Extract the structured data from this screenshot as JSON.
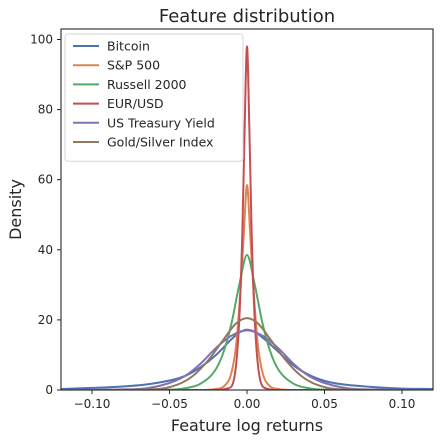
{
  "chart_data": {
    "type": "line",
    "title": "Feature distribution",
    "xlabel": "Feature log returns",
    "ylabel": "Density",
    "xlim": [
      -0.12,
      0.12
    ],
    "ylim": [
      0,
      103
    ],
    "x_ticks": [
      -0.1,
      -0.05,
      0.0,
      0.05,
      0.1
    ],
    "x_tick_labels": [
      "−0.10",
      "−0.05",
      "0.00",
      "0.05",
      "0.10"
    ],
    "y_ticks": [
      0,
      20,
      40,
      60,
      80,
      100
    ],
    "y_tick_labels": [
      "0",
      "20",
      "40",
      "60",
      "80",
      "100"
    ],
    "grid": false,
    "legend_position": "top-left",
    "series": [
      {
        "name": "Bitcoin",
        "color": "#4c72b0",
        "points": [
          [
            -0.12,
            0.3
          ],
          [
            -0.1,
            0.6
          ],
          [
            -0.08,
            1.0
          ],
          [
            -0.06,
            1.9
          ],
          [
            -0.04,
            4.0
          ],
          [
            -0.03,
            6.5
          ],
          [
            -0.02,
            10.0
          ],
          [
            -0.01,
            14.5
          ],
          [
            -0.005,
            16.4
          ],
          [
            0.0,
            17.2
          ],
          [
            0.005,
            16.6
          ],
          [
            0.01,
            15.0
          ],
          [
            0.02,
            11.0
          ],
          [
            0.03,
            7.0
          ],
          [
            0.04,
            4.3
          ],
          [
            0.05,
            2.6
          ],
          [
            0.06,
            1.7
          ],
          [
            0.08,
            0.9
          ],
          [
            0.1,
            0.4
          ],
          [
            0.12,
            0.3
          ]
        ]
      },
      {
        "name": "S&P 500",
        "color": "#dd8452",
        "points": [
          [
            -0.12,
            0.0
          ],
          [
            -0.03,
            0.0
          ],
          [
            -0.02,
            0.3
          ],
          [
            -0.015,
            1.0
          ],
          [
            -0.01,
            5.0
          ],
          [
            -0.007,
            13.0
          ],
          [
            -0.004,
            30.0
          ],
          [
            -0.002,
            45.0
          ],
          [
            0.0,
            58.5
          ],
          [
            0.002,
            45.0
          ],
          [
            0.004,
            30.0
          ],
          [
            0.007,
            13.0
          ],
          [
            0.01,
            5.0
          ],
          [
            0.015,
            1.0
          ],
          [
            0.02,
            0.3
          ],
          [
            0.03,
            0.0
          ],
          [
            0.12,
            0.0
          ]
        ]
      },
      {
        "name": "Russell 2000",
        "color": "#55a868",
        "points": [
          [
            -0.12,
            0.0
          ],
          [
            -0.05,
            0.1
          ],
          [
            -0.04,
            0.5
          ],
          [
            -0.03,
            1.8
          ],
          [
            -0.02,
            6.0
          ],
          [
            -0.015,
            11.0
          ],
          [
            -0.01,
            19.0
          ],
          [
            -0.005,
            30.0
          ],
          [
            0.0,
            38.5
          ],
          [
            0.005,
            30.0
          ],
          [
            0.01,
            19.0
          ],
          [
            0.015,
            11.0
          ],
          [
            0.02,
            6.0
          ],
          [
            0.03,
            1.8
          ],
          [
            0.04,
            0.5
          ],
          [
            0.05,
            0.1
          ],
          [
            0.12,
            0.0
          ]
        ]
      },
      {
        "name": "EUR/USD",
        "color": "#c44e52",
        "points": [
          [
            -0.12,
            0.0
          ],
          [
            -0.02,
            0.0
          ],
          [
            -0.012,
            0.5
          ],
          [
            -0.008,
            4.0
          ],
          [
            -0.005,
            20.0
          ],
          [
            -0.003,
            45.0
          ],
          [
            -0.0015,
            75.0
          ],
          [
            0.0,
            98.0
          ],
          [
            0.0015,
            75.0
          ],
          [
            0.003,
            45.0
          ],
          [
            0.005,
            20.0
          ],
          [
            0.008,
            4.0
          ],
          [
            0.012,
            0.5
          ],
          [
            0.02,
            0.0
          ],
          [
            0.12,
            0.0
          ]
        ]
      },
      {
        "name": "US Treasury Yield",
        "color": "#8172b3",
        "points": [
          [
            -0.12,
            0.0
          ],
          [
            -0.07,
            0.3
          ],
          [
            -0.05,
            2.0
          ],
          [
            -0.04,
            4.0
          ],
          [
            -0.03,
            7.5
          ],
          [
            -0.02,
            12.0
          ],
          [
            -0.01,
            15.5
          ],
          [
            0.0,
            17.0
          ],
          [
            0.01,
            15.5
          ],
          [
            0.02,
            12.0
          ],
          [
            0.03,
            7.5
          ],
          [
            0.04,
            4.0
          ],
          [
            0.05,
            2.0
          ],
          [
            0.07,
            0.3
          ],
          [
            0.12,
            0.0
          ]
        ]
      },
      {
        "name": "Gold/Silver Index",
        "color": "#937860",
        "points": [
          [
            -0.12,
            0.0
          ],
          [
            -0.06,
            0.2
          ],
          [
            -0.045,
            1.5
          ],
          [
            -0.035,
            4.0
          ],
          [
            -0.025,
            8.5
          ],
          [
            -0.015,
            14.5
          ],
          [
            -0.007,
            19.0
          ],
          [
            0.0,
            20.5
          ],
          [
            0.007,
            19.0
          ],
          [
            0.015,
            14.5
          ],
          [
            0.025,
            8.5
          ],
          [
            0.035,
            4.0
          ],
          [
            0.045,
            1.5
          ],
          [
            0.06,
            0.2
          ],
          [
            0.12,
            0.0
          ]
        ]
      }
    ]
  }
}
